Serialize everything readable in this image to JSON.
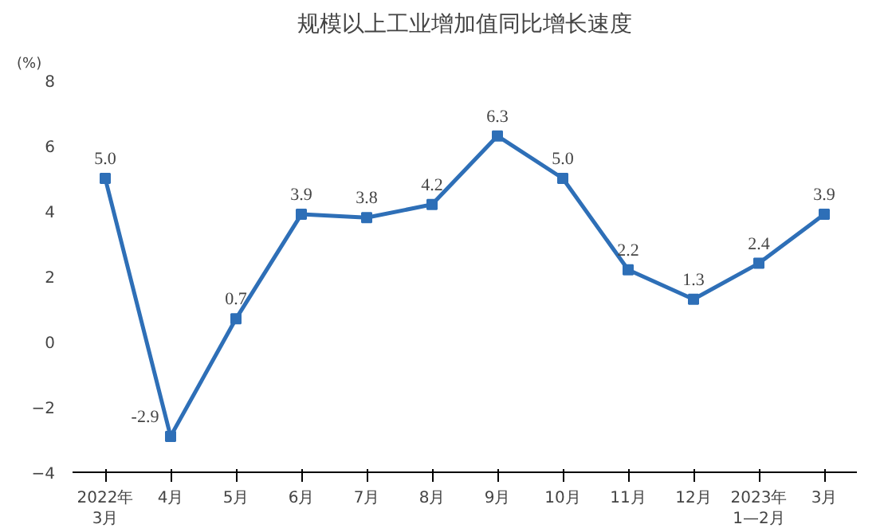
{
  "chart_data": {
    "type": "line",
    "title": "规模以上工业增加值同比增长速度",
    "ylabel": "(%)",
    "categories": [
      "2022年\n3月",
      "4月",
      "5月",
      "6月",
      "7月",
      "8月",
      "9月",
      "10月",
      "11月",
      "12月",
      "2023年\n1—2月",
      "3月"
    ],
    "series": [
      {
        "color": "#2e6fb7",
        "values": [
          5.0,
          -2.9,
          0.7,
          3.9,
          3.8,
          4.2,
          6.3,
          5.0,
          2.2,
          1.3,
          2.4,
          3.9
        ],
        "value_labels": [
          "5.0",
          "-2.9",
          "0.7",
          "3.9",
          "3.8",
          "4.2",
          "6.3",
          "5.0",
          "2.2",
          "1.3",
          "2.4",
          "3.9"
        ]
      }
    ],
    "ylim": [
      -4,
      8
    ],
    "yticks": [
      -4,
      -2,
      0,
      2,
      4,
      6,
      8
    ],
    "grid": false,
    "marker": "square",
    "line_style": "solid"
  }
}
